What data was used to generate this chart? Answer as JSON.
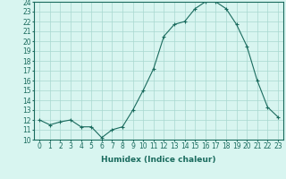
{
  "x": [
    0,
    1,
    2,
    3,
    4,
    5,
    6,
    7,
    8,
    9,
    10,
    11,
    12,
    13,
    14,
    15,
    16,
    17,
    18,
    19,
    20,
    21,
    22,
    23
  ],
  "y": [
    12,
    11.5,
    11.8,
    12,
    11.3,
    11.3,
    10.2,
    11.0,
    11.3,
    13.0,
    15.0,
    17.2,
    20.5,
    21.7,
    22.0,
    23.3,
    24.0,
    24.0,
    23.3,
    21.7,
    19.5,
    16.0,
    13.3,
    12.3
  ],
  "line_color": "#1a6b5e",
  "marker": "+",
  "bg_color": "#d8f5f0",
  "grid_color": "#a8d8d0",
  "xlabel": "Humidex (Indice chaleur)",
  "ylim": [
    10,
    24
  ],
  "xlim": [
    -0.5,
    23.5
  ],
  "yticks": [
    10,
    11,
    12,
    13,
    14,
    15,
    16,
    17,
    18,
    19,
    20,
    21,
    22,
    23,
    24
  ],
  "xticks": [
    0,
    1,
    2,
    3,
    4,
    5,
    6,
    7,
    8,
    9,
    10,
    11,
    12,
    13,
    14,
    15,
    16,
    17,
    18,
    19,
    20,
    21,
    22,
    23
  ],
  "tick_label_fontsize": 5.5,
  "xlabel_fontsize": 6.5
}
